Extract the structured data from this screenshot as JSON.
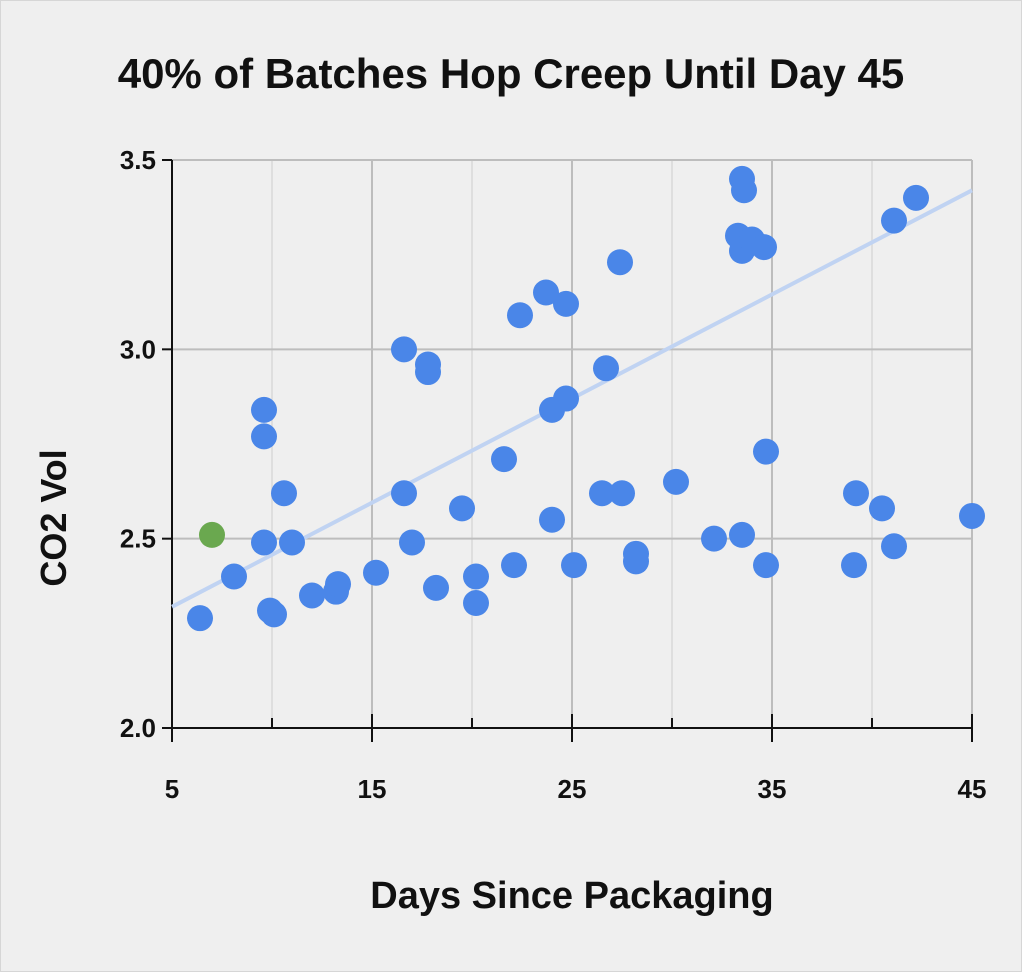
{
  "chart_data": {
    "type": "scatter",
    "title": "40% of Batches Hop Creep Until Day 45",
    "xlabel": "Days Since Packaging",
    "ylabel": "CO2 Vol",
    "xlim": [
      5,
      45
    ],
    "ylim": [
      2.0,
      3.5
    ],
    "x_ticks": [
      "5",
      "15",
      "25",
      "35",
      "45"
    ],
    "y_ticks": [
      "2.0",
      "2.5",
      "3.0",
      "3.5"
    ],
    "grid": true,
    "colors": {
      "points": "#4a86e8",
      "highlight": "#6aa84f",
      "trendline": "#c0d3f2"
    },
    "trendline": {
      "x": [
        5,
        45
      ],
      "y": [
        2.32,
        3.42
      ]
    },
    "highlight_points": [
      {
        "x": 7.0,
        "y": 2.51
      }
    ],
    "points": [
      {
        "x": 6.4,
        "y": 2.29
      },
      {
        "x": 8.1,
        "y": 2.4
      },
      {
        "x": 9.6,
        "y": 2.84
      },
      {
        "x": 9.6,
        "y": 2.77
      },
      {
        "x": 9.6,
        "y": 2.49
      },
      {
        "x": 9.9,
        "y": 2.31
      },
      {
        "x": 10.1,
        "y": 2.3
      },
      {
        "x": 10.6,
        "y": 2.62
      },
      {
        "x": 11.0,
        "y": 2.49
      },
      {
        "x": 12.0,
        "y": 2.35
      },
      {
        "x": 13.2,
        "y": 2.36
      },
      {
        "x": 13.3,
        "y": 2.38
      },
      {
        "x": 15.2,
        "y": 2.41
      },
      {
        "x": 16.6,
        "y": 3.0
      },
      {
        "x": 16.6,
        "y": 2.62
      },
      {
        "x": 17.0,
        "y": 2.49
      },
      {
        "x": 17.8,
        "y": 2.96
      },
      {
        "x": 17.8,
        "y": 2.94
      },
      {
        "x": 18.2,
        "y": 2.37
      },
      {
        "x": 19.5,
        "y": 2.58
      },
      {
        "x": 20.2,
        "y": 2.4
      },
      {
        "x": 20.2,
        "y": 2.33
      },
      {
        "x": 21.6,
        "y": 2.71
      },
      {
        "x": 22.1,
        "y": 2.43
      },
      {
        "x": 22.4,
        "y": 3.09
      },
      {
        "x": 23.7,
        "y": 3.15
      },
      {
        "x": 24.0,
        "y": 2.84
      },
      {
        "x": 24.0,
        "y": 2.55
      },
      {
        "x": 24.7,
        "y": 3.12
      },
      {
        "x": 24.7,
        "y": 2.87
      },
      {
        "x": 25.1,
        "y": 2.43
      },
      {
        "x": 26.5,
        "y": 2.62
      },
      {
        "x": 26.7,
        "y": 2.95
      },
      {
        "x": 27.4,
        "y": 3.23
      },
      {
        "x": 27.5,
        "y": 2.62
      },
      {
        "x": 28.2,
        "y": 2.46
      },
      {
        "x": 28.2,
        "y": 2.44
      },
      {
        "x": 30.2,
        "y": 2.65
      },
      {
        "x": 32.1,
        "y": 2.5
      },
      {
        "x": 33.5,
        "y": 3.45
      },
      {
        "x": 33.6,
        "y": 3.42
      },
      {
        "x": 33.3,
        "y": 3.3
      },
      {
        "x": 33.5,
        "y": 3.26
      },
      {
        "x": 34.0,
        "y": 3.29
      },
      {
        "x": 34.6,
        "y": 3.27
      },
      {
        "x": 33.5,
        "y": 2.51
      },
      {
        "x": 34.7,
        "y": 2.73
      },
      {
        "x": 34.7,
        "y": 2.43
      },
      {
        "x": 39.1,
        "y": 2.43
      },
      {
        "x": 39.2,
        "y": 2.62
      },
      {
        "x": 40.5,
        "y": 2.58
      },
      {
        "x": 41.1,
        "y": 3.34
      },
      {
        "x": 41.1,
        "y": 2.48
      },
      {
        "x": 42.2,
        "y": 3.4
      },
      {
        "x": 45.0,
        "y": 2.56
      }
    ]
  }
}
